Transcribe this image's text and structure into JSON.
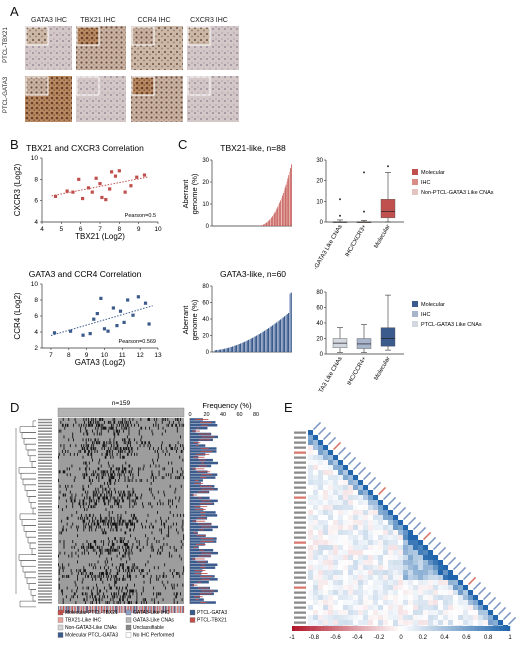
{
  "panels": {
    "a": "A",
    "b": "B",
    "c": "C",
    "d": "D",
    "e": "E"
  },
  "panel_a": {
    "columns": [
      "GATA3 IHC",
      "TBX21 IHC",
      "CCR4 IHC",
      "CXCR3 IHC"
    ],
    "rows": [
      "PTCL-TBX21",
      "PTCL-GATA3"
    ]
  },
  "colors": {
    "tbx21": "#c0504d",
    "tbx21_light": "#e6a39b",
    "gata3": "#3b5b8c",
    "gata3_light": "#8ea2c4",
    "unclass": "#a6a6a6"
  },
  "chart_data": [
    {
      "type": "scatter",
      "title": "TBX21 and CXCR3 Correlation",
      "xlabel": "TBX21 (Log2)",
      "ylabel": "CXCR3 (Log2)",
      "xlim": [
        4,
        10
      ],
      "ylim": [
        4,
        10
      ],
      "xticks": [
        "4",
        "5",
        "6",
        "7",
        "8",
        "9",
        "10"
      ],
      "yticks": [
        "4",
        "6",
        "8",
        "10"
      ],
      "annotation": "Pearson=0.5",
      "points": [
        [
          4.7,
          6.4
        ],
        [
          5.3,
          6.9
        ],
        [
          5.6,
          6.8
        ],
        [
          5.9,
          8.0
        ],
        [
          6.1,
          6.2
        ],
        [
          6.4,
          7.2
        ],
        [
          6.6,
          6.8
        ],
        [
          6.8,
          8.1
        ],
        [
          7.0,
          7.6
        ],
        [
          7.1,
          6.3
        ],
        [
          7.3,
          6.1
        ],
        [
          7.5,
          7.1
        ],
        [
          7.6,
          8.7
        ],
        [
          7.8,
          8.3
        ],
        [
          8.0,
          8.8
        ],
        [
          8.3,
          6.8
        ],
        [
          8.6,
          7.4
        ],
        [
          8.9,
          8.2
        ],
        [
          9.3,
          8.4
        ]
      ]
    },
    {
      "type": "scatter",
      "title": "GATA3 and CCR4 Correlation",
      "xlabel": "GATA3 (Log2)",
      "ylabel": "CCR4 (Log2)",
      "xlim": [
        6.5,
        13
      ],
      "ylim": [
        2,
        10
      ],
      "xticks": [
        "7",
        "8",
        "9",
        "10",
        "11",
        "12",
        "13"
      ],
      "yticks": [
        "2",
        "4",
        "6",
        "8",
        "10"
      ],
      "annotation": "Pearson=0.569",
      "points": [
        [
          7.2,
          3.9
        ],
        [
          8.1,
          4.1
        ],
        [
          8.8,
          3.6
        ],
        [
          9.2,
          3.8
        ],
        [
          9.4,
          5.6
        ],
        [
          9.6,
          6.3
        ],
        [
          9.8,
          8.2
        ],
        [
          10.0,
          4.4
        ],
        [
          10.2,
          4.1
        ],
        [
          10.5,
          7.0
        ],
        [
          10.7,
          4.8
        ],
        [
          10.9,
          6.6
        ],
        [
          11.1,
          5.2
        ],
        [
          11.3,
          8.0
        ],
        [
          11.6,
          6.1
        ],
        [
          11.9,
          8.4
        ],
        [
          12.3,
          7.6
        ],
        [
          12.5,
          5.0
        ]
      ]
    },
    {
      "type": "bar",
      "title": "TBX21-like, n=88",
      "ylabel": "Aberrant genome (%)",
      "ylim": [
        0,
        30
      ],
      "yticks": [
        "0",
        "10",
        "20",
        "30"
      ],
      "n": 88
    },
    {
      "type": "box",
      "title": "",
      "ylim": [
        0,
        30
      ],
      "yticks": [
        "0",
        "10",
        "20",
        "30"
      ],
      "categories": [
        "Non-PTCL-GATA3 Like CNAs",
        "IHC/CXCR3+",
        "Molecular"
      ],
      "legend": [
        "Molecular",
        "IHC",
        "Non-PTCL-GATA3 Like CNAs"
      ]
    },
    {
      "type": "bar",
      "title": "GATA3-like, n=60",
      "ylabel": "Aberrant genome (%)",
      "ylim": [
        0,
        80
      ],
      "yticks": [
        "0",
        "20",
        "40",
        "60",
        "80"
      ],
      "n": 60
    },
    {
      "type": "box",
      "title": "",
      "ylim": [
        0,
        80
      ],
      "yticks": [
        "0",
        "20",
        "40",
        "60",
        "80"
      ],
      "categories": [
        "PTCL-GATA3 Like CNAs",
        "IHC/CCR4+",
        "Molecular"
      ],
      "legend": [
        "Molecular",
        "IHC",
        "PTCL-GATA3 Like CNAs"
      ]
    },
    {
      "type": "heatmap",
      "title": "n=159",
      "freq_title": "Frequency (%)",
      "freq_ticks": [
        "0",
        "20",
        "40",
        "60",
        "80"
      ],
      "legend": [
        "Molecular PTCL-TBX21",
        "TBX21-Like IHC",
        "Non-GATA3-Like CNAs",
        "Molecular PTCL-GATA3",
        "GATA3-Like IHC",
        "GATA3-Like CNAs",
        "Unclassifiable",
        "No IHC Performed",
        "PTCL-GATA3",
        "PTCL-TBX21"
      ]
    },
    {
      "type": "heatmap",
      "title": "",
      "colorbar_ticks": [
        "-1",
        "-0.8",
        "-0.6",
        "-0.4",
        "-0.2",
        "0",
        "0.2",
        "0.4",
        "0.6",
        "0.8",
        "1"
      ]
    }
  ]
}
